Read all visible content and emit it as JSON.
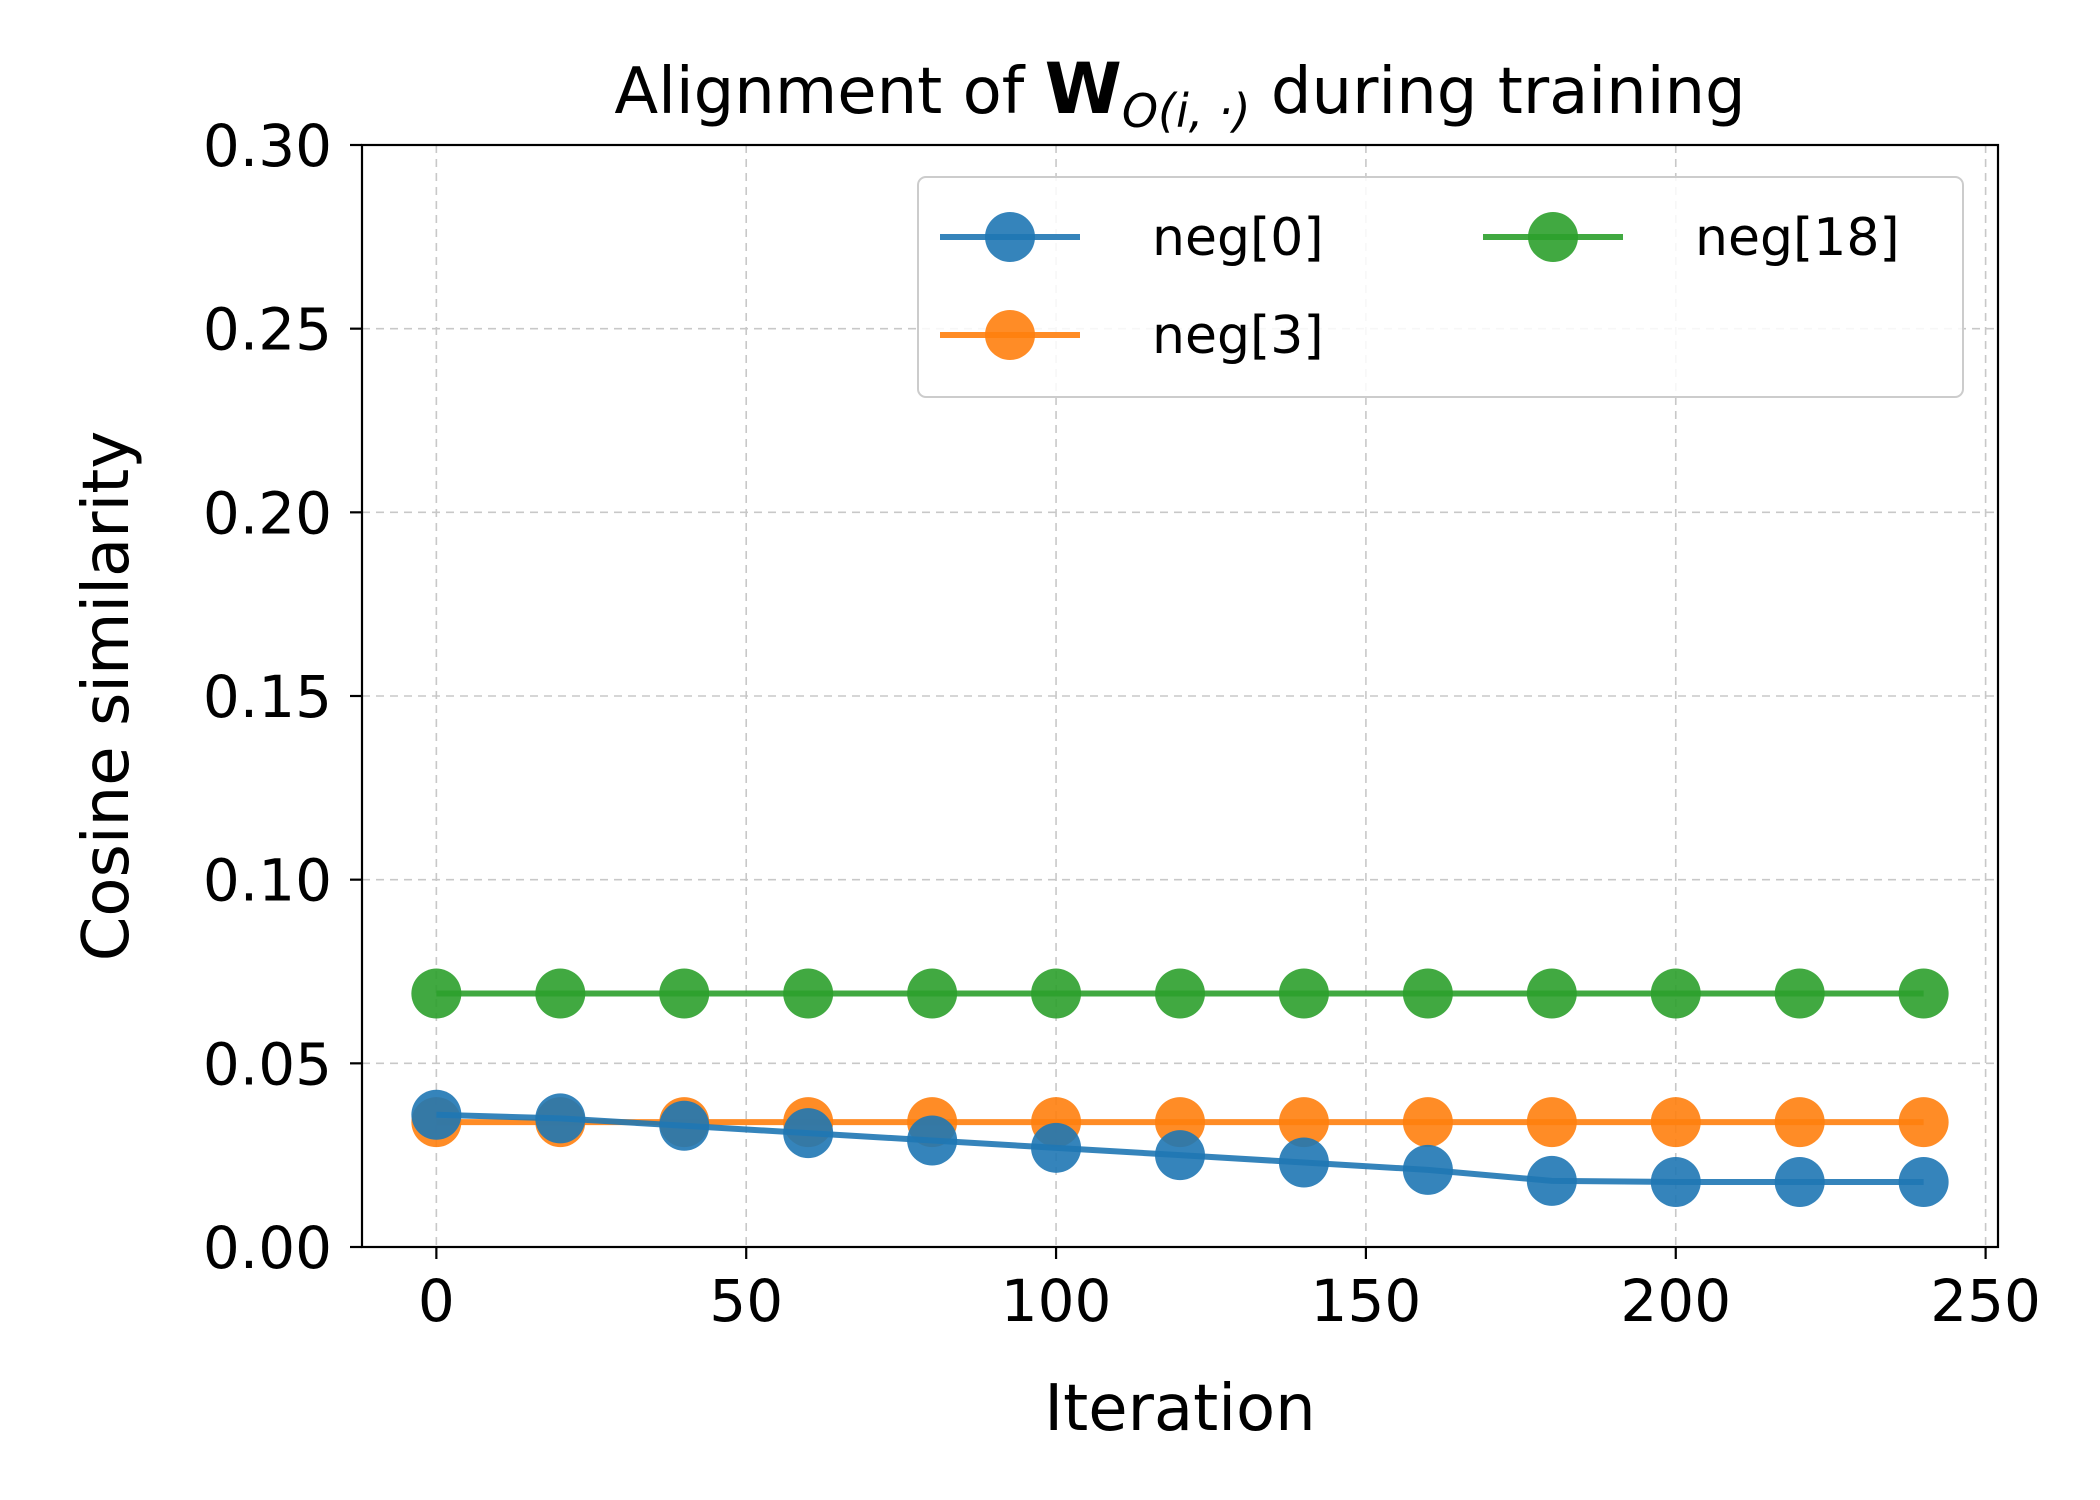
{
  "chart_data": {
    "type": "line",
    "title_prefix": "Alignment of ",
    "title_math_bold": "W",
    "title_math_sub": "O(i, ·)",
    "title_suffix": " during training",
    "xlabel": "Iteration",
    "ylabel": "Cosine similarity",
    "xlim": [
      -12,
      252
    ],
    "ylim": [
      0,
      0.3
    ],
    "x_ticks": [
      0,
      50,
      100,
      150,
      200,
      250
    ],
    "x_tick_labels": [
      "0",
      "50",
      "100",
      "150",
      "200",
      "250"
    ],
    "y_ticks": [
      0,
      0.05,
      0.1,
      0.15,
      0.2,
      0.25,
      0.3
    ],
    "y_tick_labels": [
      "0.00",
      "0.05",
      "0.10",
      "0.15",
      "0.20",
      "0.25",
      "0.30"
    ],
    "grid": true,
    "legend_position": "top-right",
    "x": [
      0,
      20,
      40,
      60,
      80,
      100,
      120,
      140,
      160,
      180,
      200,
      220,
      240
    ],
    "series": [
      {
        "name": "neg[0]",
        "color": "#1f77b4",
        "values": [
          0.036,
          0.035,
          0.033,
          0.031,
          0.029,
          0.027,
          0.025,
          0.023,
          0.021,
          0.018,
          0.0177,
          0.0177,
          0.0177
        ]
      },
      {
        "name": "neg[3]",
        "color": "#ff7f0e",
        "values": [
          0.034,
          0.034,
          0.034,
          0.034,
          0.034,
          0.034,
          0.034,
          0.034,
          0.034,
          0.034,
          0.034,
          0.034,
          0.034
        ]
      },
      {
        "name": "neg[18]",
        "color": "#2ca02c",
        "values": [
          0.069,
          0.069,
          0.069,
          0.069,
          0.069,
          0.069,
          0.069,
          0.069,
          0.069,
          0.069,
          0.069,
          0.069,
          0.069
        ]
      }
    ]
  }
}
